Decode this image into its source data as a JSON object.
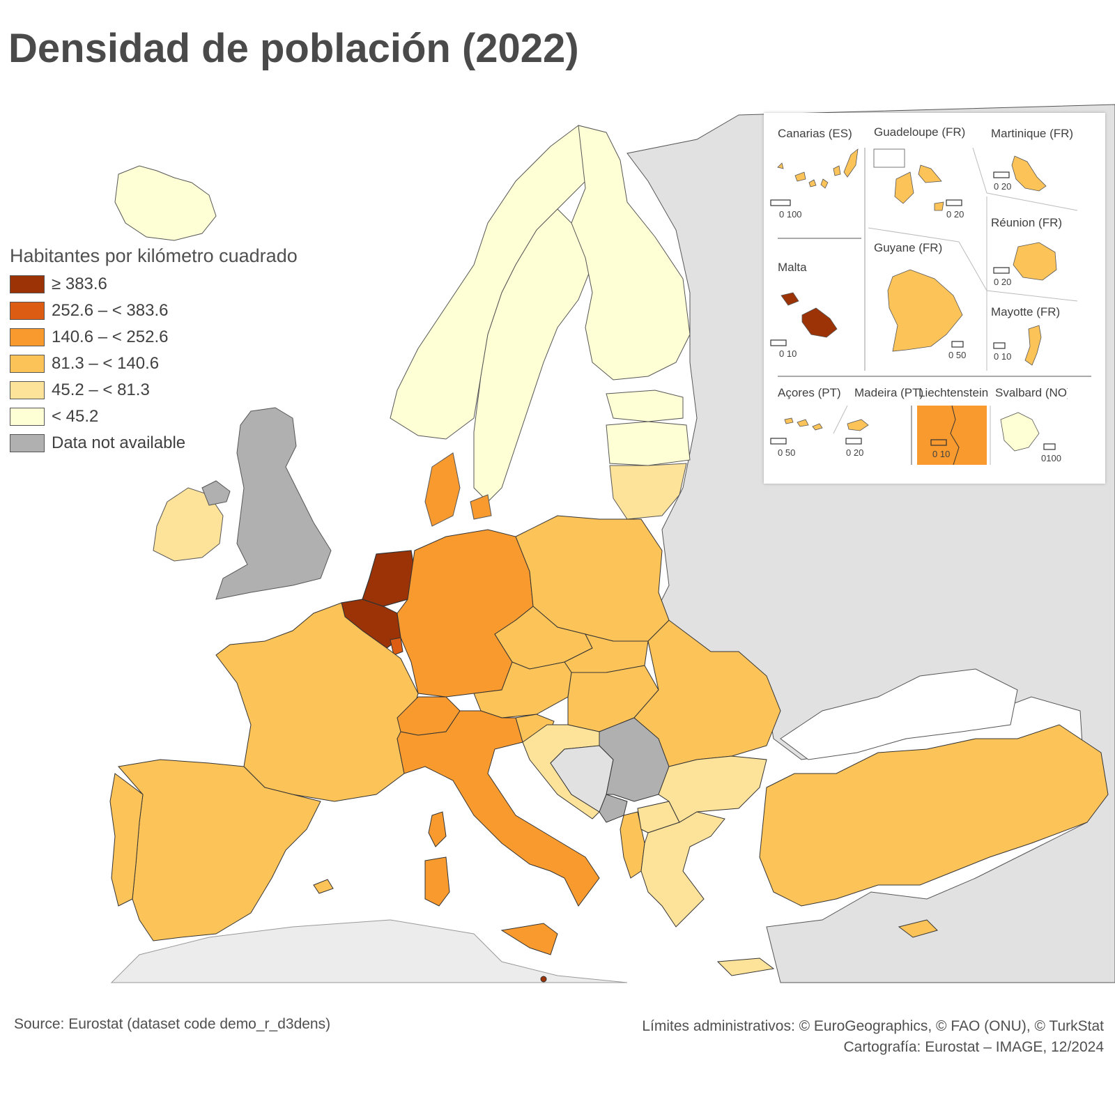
{
  "title": "Densidad de población (2022)",
  "legend": {
    "title": "Habitantes por kilómetro cuadrado",
    "classes": [
      {
        "label": "≥ 383.6",
        "color": "#9b3306"
      },
      {
        "label": "252.6 – < 383.6",
        "color": "#db5c12"
      },
      {
        "label": "140.6 – < 252.6",
        "color": "#f99a2e"
      },
      {
        "label": "81.3 – < 140.6",
        "color": "#fcc358"
      },
      {
        "label": "45.2 – < 81.3",
        "color": "#fde39a"
      },
      {
        "label": "< 45.2",
        "color": "#ffffd6"
      },
      {
        "label": "Data not available",
        "color": "#b0b0b0"
      }
    ]
  },
  "colors": {
    "non_eu": "#e1e1e1",
    "sea": "#ffffff",
    "border": "#333333"
  },
  "insets": [
    {
      "name": "Canarias (ES)",
      "scale": "0   100",
      "class": "81.3 – < 140.6"
    },
    {
      "name": "Guadeloupe (FR)",
      "scale": "0  20",
      "class": "81.3 – < 140.6"
    },
    {
      "name": "Martinique (FR)",
      "scale": "0  20",
      "class": "81.3 – < 140.6"
    },
    {
      "name": "Réunion (FR)",
      "scale": "0  20",
      "class": "81.3 – < 140.6"
    },
    {
      "name": "Malta",
      "scale": "0   10",
      "class": "≥ 383.6"
    },
    {
      "name": "Guyane (FR)",
      "scale": "0 50",
      "class": "81.3 – < 140.6"
    },
    {
      "name": "Mayotte (FR)",
      "scale": "0  10",
      "class": "81.3 – < 140.6"
    },
    {
      "name": "Açores (PT)",
      "scale": "0   50",
      "class": "81.3 – < 140.6"
    },
    {
      "name": "Madeira (PT)",
      "scale": "0  20",
      "class": "81.3 – < 140.6"
    },
    {
      "name": "Liechtenstein",
      "scale": "0   10",
      "class": "140.6 – < 252.6"
    },
    {
      "name": "Svalbard (NO)",
      "scale": "0100",
      "class": "< 45.2"
    }
  ],
  "footer": {
    "source": "Source: Eurostat (dataset code demo_r_d3dens)",
    "boundaries": "Límites administrativos: © EuroGeographics, © FAO (ONU), © TurkStat",
    "cartography": "Cartografía: Eurostat – IMAGE, 12/2024"
  }
}
